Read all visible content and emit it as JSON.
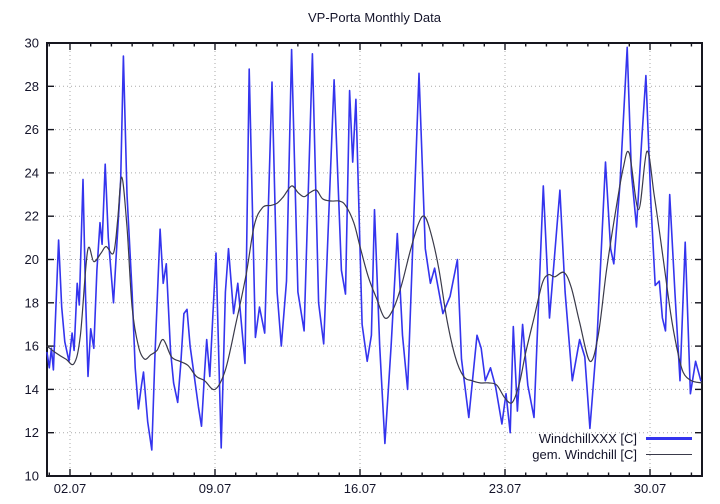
{
  "colors": {
    "background": "#ffffff",
    "border": "#16161f",
    "grid": "#aaaaaa",
    "text": "#14142a",
    "series_blue": "#3434ee",
    "series_dark": "#3a3a4a"
  },
  "chart_data": {
    "type": "line",
    "title": "VP-Porta Monthly Data",
    "xlabel": "",
    "ylabel": "",
    "x_unit": "date (day of July, decimal)",
    "xlim": [
      0.89,
      32.51
    ],
    "ylim": [
      10,
      30
    ],
    "grid": true,
    "legend_position": "inside bottom-right",
    "x_major_ticks": [
      {
        "d": 2,
        "label": "02.07"
      },
      {
        "d": 9,
        "label": "09.07"
      },
      {
        "d": 16,
        "label": "16.07"
      },
      {
        "d": 23,
        "label": "23.07"
      },
      {
        "d": 30,
        "label": "30.07"
      }
    ],
    "x_minor_tick_days": [
      1,
      2,
      3,
      4,
      5,
      6,
      7,
      8,
      9,
      10,
      11,
      12,
      13,
      14,
      15,
      16,
      17,
      18,
      19,
      20,
      21,
      22,
      23,
      24,
      25,
      26,
      27,
      28,
      29,
      30,
      31,
      32
    ],
    "y_ticks": [
      10,
      12,
      14,
      16,
      18,
      20,
      22,
      24,
      26,
      28,
      30
    ],
    "series": [
      {
        "name": "WindchillXXX [C]",
        "color": "#3434ee",
        "width": 1.6,
        "smooth": false,
        "points": [
          [
            0.89,
            15.7
          ],
          [
            1.0,
            15.0
          ],
          [
            1.1,
            15.9
          ],
          [
            1.2,
            14.9
          ],
          [
            1.45,
            20.9
          ],
          [
            1.6,
            17.8
          ],
          [
            1.75,
            16.2
          ],
          [
            1.95,
            15.3
          ],
          [
            2.1,
            16.6
          ],
          [
            2.2,
            15.8
          ],
          [
            2.35,
            18.9
          ],
          [
            2.45,
            17.9
          ],
          [
            2.63,
            23.7
          ],
          [
            2.75,
            18.4
          ],
          [
            2.87,
            14.6
          ],
          [
            3.0,
            16.8
          ],
          [
            3.15,
            15.9
          ],
          [
            3.3,
            19.5
          ],
          [
            3.45,
            21.7
          ],
          [
            3.55,
            20.7
          ],
          [
            3.7,
            24.4
          ],
          [
            3.85,
            21.0
          ],
          [
            4.1,
            18.0
          ],
          [
            4.25,
            20.5
          ],
          [
            4.45,
            23.7
          ],
          [
            4.58,
            29.4
          ],
          [
            4.75,
            23.0
          ],
          [
            5.0,
            18.5
          ],
          [
            5.15,
            15.0
          ],
          [
            5.3,
            13.1
          ],
          [
            5.45,
            14.2
          ],
          [
            5.55,
            14.8
          ],
          [
            5.75,
            12.5
          ],
          [
            5.95,
            11.2
          ],
          [
            6.1,
            15.5
          ],
          [
            6.35,
            21.4
          ],
          [
            6.5,
            18.9
          ],
          [
            6.65,
            19.8
          ],
          [
            6.85,
            15.8
          ],
          [
            7.0,
            14.3
          ],
          [
            7.2,
            13.4
          ],
          [
            7.35,
            15.2
          ],
          [
            7.5,
            17.5
          ],
          [
            7.65,
            17.7
          ],
          [
            7.8,
            16.0
          ],
          [
            8.0,
            14.6
          ],
          [
            8.2,
            13.2
          ],
          [
            8.35,
            12.3
          ],
          [
            8.5,
            14.8
          ],
          [
            8.6,
            16.3
          ],
          [
            8.75,
            14.6
          ],
          [
            9.05,
            20.3
          ],
          [
            9.3,
            11.3
          ],
          [
            9.5,
            18.5
          ],
          [
            9.65,
            20.5
          ],
          [
            9.9,
            17.5
          ],
          [
            10.1,
            18.9
          ],
          [
            10.45,
            15.2
          ],
          [
            10.65,
            28.8
          ],
          [
            10.95,
            16.4
          ],
          [
            11.15,
            17.8
          ],
          [
            11.4,
            16.6
          ],
          [
            11.75,
            28.2
          ],
          [
            12.0,
            18.5
          ],
          [
            12.2,
            16.0
          ],
          [
            12.45,
            19.0
          ],
          [
            12.7,
            29.7
          ],
          [
            13.0,
            18.5
          ],
          [
            13.3,
            16.7
          ],
          [
            13.7,
            29.5
          ],
          [
            14.0,
            18.0
          ],
          [
            14.25,
            16.1
          ],
          [
            14.75,
            28.3
          ],
          [
            15.1,
            19.5
          ],
          [
            15.3,
            18.4
          ],
          [
            15.5,
            27.8
          ],
          [
            15.65,
            24.5
          ],
          [
            15.8,
            27.4
          ],
          [
            16.1,
            17.0
          ],
          [
            16.35,
            15.3
          ],
          [
            16.55,
            16.5
          ],
          [
            16.7,
            22.3
          ],
          [
            16.95,
            16.0
          ],
          [
            17.2,
            11.5
          ],
          [
            17.5,
            16.0
          ],
          [
            17.8,
            21.2
          ],
          [
            18.05,
            16.5
          ],
          [
            18.3,
            14.0
          ],
          [
            18.85,
            28.6
          ],
          [
            19.15,
            20.5
          ],
          [
            19.4,
            18.9
          ],
          [
            19.6,
            19.6
          ],
          [
            20.0,
            17.5
          ],
          [
            20.35,
            18.3
          ],
          [
            20.7,
            20.0
          ],
          [
            20.9,
            15.4
          ],
          [
            21.25,
            12.7
          ],
          [
            21.65,
            16.5
          ],
          [
            21.85,
            15.9
          ],
          [
            22.05,
            14.4
          ],
          [
            22.3,
            15.0
          ],
          [
            22.55,
            14.1
          ],
          [
            22.85,
            12.4
          ],
          [
            23.05,
            13.8
          ],
          [
            23.25,
            12.0
          ],
          [
            23.4,
            16.9
          ],
          [
            23.6,
            13.0
          ],
          [
            23.85,
            17.0
          ],
          [
            24.1,
            14.2
          ],
          [
            24.4,
            12.7
          ],
          [
            24.85,
            23.4
          ],
          [
            25.15,
            17.3
          ],
          [
            25.65,
            23.2
          ],
          [
            25.9,
            18.5
          ],
          [
            26.25,
            14.4
          ],
          [
            26.6,
            16.3
          ],
          [
            26.85,
            15.5
          ],
          [
            27.1,
            12.2
          ],
          [
            27.45,
            16.5
          ],
          [
            27.85,
            24.5
          ],
          [
            28.1,
            20.5
          ],
          [
            28.25,
            19.8
          ],
          [
            28.55,
            23.5
          ],
          [
            28.9,
            29.8
          ],
          [
            29.1,
            24.0
          ],
          [
            29.35,
            21.5
          ],
          [
            29.6,
            25.5
          ],
          [
            29.8,
            28.5
          ],
          [
            30.05,
            22.5
          ],
          [
            30.25,
            18.8
          ],
          [
            30.45,
            19.0
          ],
          [
            30.6,
            17.3
          ],
          [
            30.75,
            16.7
          ],
          [
            30.95,
            23.0
          ],
          [
            31.2,
            18.5
          ],
          [
            31.45,
            14.4
          ],
          [
            31.7,
            20.8
          ],
          [
            31.95,
            13.8
          ],
          [
            32.2,
            15.3
          ],
          [
            32.45,
            14.4
          ]
        ]
      },
      {
        "name": "gem. Windchill [C]",
        "color": "#3a3a4a",
        "width": 1.2,
        "smooth": true,
        "points": [
          [
            0.89,
            16.0
          ],
          [
            1.3,
            15.7
          ],
          [
            1.8,
            15.4
          ],
          [
            2.2,
            15.2
          ],
          [
            2.5,
            16.5
          ],
          [
            2.85,
            20.4
          ],
          [
            3.15,
            19.9
          ],
          [
            3.5,
            20.3
          ],
          [
            3.75,
            20.6
          ],
          [
            4.1,
            20.3
          ],
          [
            4.3,
            21.8
          ],
          [
            4.5,
            23.8
          ],
          [
            4.75,
            21.5
          ],
          [
            5.0,
            17.8
          ],
          [
            5.3,
            16.0
          ],
          [
            5.6,
            15.4
          ],
          [
            5.9,
            15.6
          ],
          [
            6.2,
            15.8
          ],
          [
            6.5,
            16.3
          ],
          [
            6.9,
            15.5
          ],
          [
            7.3,
            15.3
          ],
          [
            7.7,
            15.1
          ],
          [
            8.1,
            14.6
          ],
          [
            8.5,
            14.4
          ],
          [
            9.0,
            14.0
          ],
          [
            9.5,
            14.9
          ],
          [
            10.0,
            17.0
          ],
          [
            10.5,
            19.3
          ],
          [
            10.9,
            21.6
          ],
          [
            11.3,
            22.4
          ],
          [
            11.7,
            22.5
          ],
          [
            12.0,
            22.6
          ],
          [
            12.3,
            22.9
          ],
          [
            12.7,
            23.4
          ],
          [
            13.0,
            23.1
          ],
          [
            13.3,
            22.9
          ],
          [
            13.6,
            23.1
          ],
          [
            13.9,
            23.2
          ],
          [
            14.2,
            22.8
          ],
          [
            14.6,
            22.7
          ],
          [
            15.0,
            22.7
          ],
          [
            15.3,
            22.5
          ],
          [
            15.7,
            21.7
          ],
          [
            16.0,
            20.6
          ],
          [
            16.4,
            19.2
          ],
          [
            16.8,
            18.2
          ],
          [
            17.2,
            17.3
          ],
          [
            17.6,
            17.7
          ],
          [
            18.0,
            18.8
          ],
          [
            18.4,
            20.3
          ],
          [
            18.8,
            21.6
          ],
          [
            19.1,
            22.0
          ],
          [
            19.4,
            21.3
          ],
          [
            19.8,
            19.6
          ],
          [
            20.2,
            17.2
          ],
          [
            20.6,
            15.5
          ],
          [
            21.0,
            14.6
          ],
          [
            21.4,
            14.4
          ],
          [
            21.8,
            14.3
          ],
          [
            22.2,
            14.3
          ],
          [
            22.6,
            14.2
          ],
          [
            23.0,
            13.6
          ],
          [
            23.35,
            13.4
          ],
          [
            23.7,
            14.3
          ],
          [
            24.0,
            15.7
          ],
          [
            24.4,
            17.3
          ],
          [
            24.8,
            18.9
          ],
          [
            25.1,
            19.3
          ],
          [
            25.4,
            19.2
          ],
          [
            25.85,
            19.4
          ],
          [
            26.2,
            18.7
          ],
          [
            26.6,
            17.1
          ],
          [
            27.1,
            15.3
          ],
          [
            27.5,
            16.5
          ],
          [
            27.9,
            19.5
          ],
          [
            28.3,
            22.0
          ],
          [
            28.7,
            24.2
          ],
          [
            29.0,
            24.9
          ],
          [
            29.45,
            22.3
          ],
          [
            29.85,
            25.0
          ],
          [
            30.2,
            23.0
          ],
          [
            30.6,
            20.3
          ],
          [
            31.0,
            17.5
          ],
          [
            31.3,
            15.9
          ],
          [
            31.6,
            14.8
          ],
          [
            32.0,
            14.4
          ],
          [
            32.5,
            14.3
          ]
        ]
      }
    ]
  }
}
